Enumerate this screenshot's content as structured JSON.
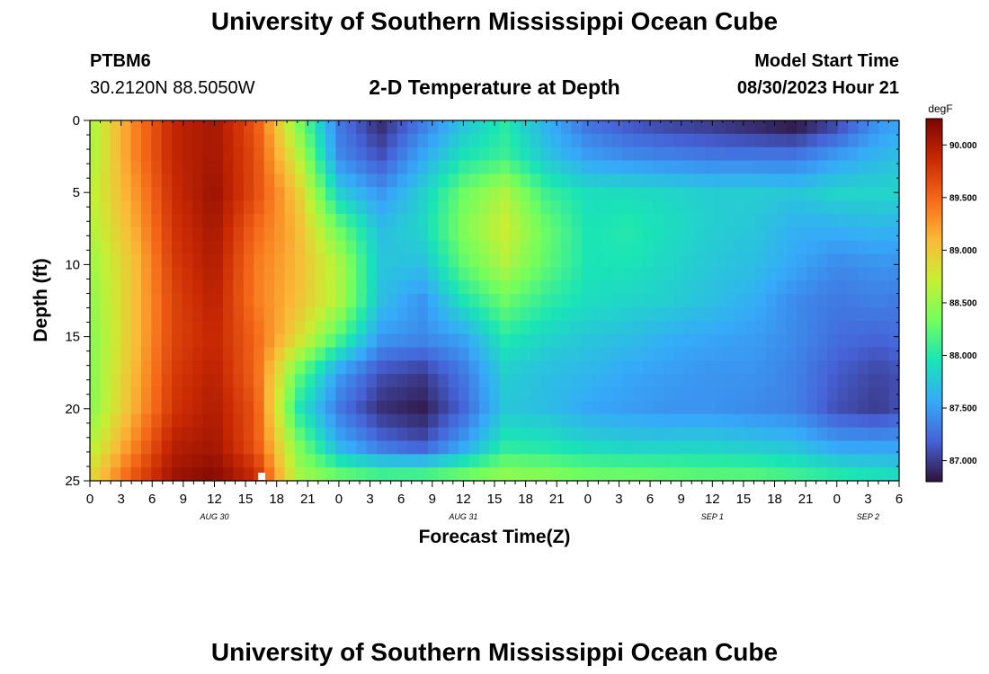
{
  "page": {
    "title": "University of Southern Mississippi Ocean Cube",
    "footer_title": "University of Southern Mississippi Ocean Cube",
    "station_id": "PTBM6",
    "station_coords": "30.2120N  88.5050W",
    "chart_heading": "2-D Temperature at Depth",
    "model_start_label": "Model Start Time",
    "model_start_value": "08/30/2023 Hour 21"
  },
  "chart_data": {
    "type": "heatmap",
    "title": "2-D Temperature at Depth",
    "xlabel": "Forecast Time(Z)",
    "ylabel": "Depth (ft)",
    "x_unit": "forecast hour from 2023-08-30 00Z",
    "xlim": [
      0,
      78
    ],
    "ylim": [
      0,
      25
    ],
    "x_ticks": [
      {
        "x": 0,
        "label": "0"
      },
      {
        "x": 3,
        "label": "3"
      },
      {
        "x": 6,
        "label": "6"
      },
      {
        "x": 9,
        "label": "9"
      },
      {
        "x": 12,
        "label": "12"
      },
      {
        "x": 15,
        "label": "15"
      },
      {
        "x": 18,
        "label": "18"
      },
      {
        "x": 21,
        "label": "21"
      },
      {
        "x": 24,
        "label": "0"
      },
      {
        "x": 27,
        "label": "3"
      },
      {
        "x": 30,
        "label": "6"
      },
      {
        "x": 33,
        "label": "9"
      },
      {
        "x": 36,
        "label": "12"
      },
      {
        "x": 39,
        "label": "15"
      },
      {
        "x": 42,
        "label": "18"
      },
      {
        "x": 45,
        "label": "21"
      },
      {
        "x": 48,
        "label": "0"
      },
      {
        "x": 51,
        "label": "3"
      },
      {
        "x": 54,
        "label": "6"
      },
      {
        "x": 57,
        "label": "9"
      },
      {
        "x": 60,
        "label": "12"
      },
      {
        "x": 63,
        "label": "15"
      },
      {
        "x": 66,
        "label": "18"
      },
      {
        "x": 69,
        "label": "21"
      },
      {
        "x": 72,
        "label": "0"
      },
      {
        "x": 75,
        "label": "3"
      },
      {
        "x": 78,
        "label": "6"
      }
    ],
    "date_labels": [
      {
        "x": 12,
        "label": "AUG 30"
      },
      {
        "x": 36,
        "label": "AUG 31"
      },
      {
        "x": 60,
        "label": "SEP 1"
      },
      {
        "x": 75,
        "label": "SEP 2"
      }
    ],
    "y_ticks": [
      0,
      5,
      10,
      15,
      20,
      25
    ],
    "colorbar": {
      "unit": "degF",
      "min": 86.8,
      "max": 90.25,
      "ticks": [
        "87.000",
        "87.500",
        "88.000",
        "88.500",
        "89.000",
        "89.500",
        "90.000"
      ],
      "colors": [
        "#30123b",
        "#4662d7",
        "#36aaf9",
        "#1ae4b6",
        "#72fe5e",
        "#c7ef34",
        "#fbb938",
        "#f56918",
        "#c92903",
        "#7a0403"
      ]
    },
    "grid": {
      "x": [
        0,
        4,
        8,
        12,
        16,
        20,
        24,
        28,
        32,
        36,
        40,
        44,
        48,
        52,
        56,
        60,
        64,
        68,
        72,
        76,
        78
      ],
      "depth": [
        0,
        2.5,
        5,
        7.5,
        10,
        12.5,
        15,
        17.5,
        20,
        22.5,
        25
      ],
      "values": [
        [
          88.55,
          89.3,
          89.9,
          90.05,
          89.6,
          88.4,
          87.3,
          86.9,
          87.3,
          87.7,
          88.0,
          87.6,
          87.25,
          87.1,
          87.0,
          86.95,
          86.85,
          86.75,
          87.0,
          87.45,
          87.5
        ],
        [
          88.55,
          89.3,
          89.9,
          90.05,
          89.65,
          88.7,
          87.4,
          87.1,
          87.55,
          87.95,
          88.1,
          87.75,
          87.5,
          87.4,
          87.35,
          87.3,
          87.3,
          87.3,
          87.5,
          87.65,
          87.7
        ],
        [
          88.65,
          89.2,
          89.85,
          90.1,
          89.65,
          89.0,
          87.8,
          87.45,
          87.8,
          88.3,
          88.6,
          88.1,
          87.9,
          87.9,
          87.85,
          87.8,
          87.8,
          87.75,
          87.85,
          87.85,
          87.85
        ],
        [
          88.6,
          89.1,
          89.8,
          90.05,
          89.5,
          89.1,
          88.3,
          87.7,
          87.85,
          88.4,
          88.75,
          88.3,
          87.95,
          88.0,
          87.9,
          87.8,
          87.75,
          87.6,
          87.6,
          87.65,
          87.6
        ],
        [
          88.5,
          89.0,
          89.75,
          90.0,
          89.4,
          89.1,
          88.6,
          87.75,
          87.7,
          88.25,
          88.6,
          88.25,
          87.95,
          87.95,
          87.85,
          87.75,
          87.7,
          87.55,
          87.4,
          87.45,
          87.45
        ],
        [
          88.45,
          89.0,
          89.7,
          89.95,
          89.4,
          89.05,
          88.6,
          87.7,
          87.45,
          87.95,
          88.3,
          88.05,
          87.9,
          87.85,
          87.8,
          87.7,
          87.6,
          87.4,
          87.3,
          87.35,
          87.3
        ],
        [
          88.4,
          89.0,
          89.7,
          89.9,
          89.5,
          88.9,
          88.2,
          87.5,
          87.4,
          87.55,
          88.0,
          87.85,
          87.75,
          87.7,
          87.6,
          87.55,
          87.5,
          87.4,
          87.25,
          87.2,
          87.25
        ],
        [
          88.4,
          89.05,
          89.75,
          89.95,
          89.5,
          88.3,
          87.5,
          87.1,
          87.0,
          87.3,
          87.8,
          87.7,
          87.65,
          87.55,
          87.5,
          87.45,
          87.45,
          87.35,
          87.15,
          87.05,
          87.1
        ],
        [
          88.4,
          89.1,
          89.8,
          90.0,
          89.6,
          88.0,
          87.3,
          86.95,
          86.85,
          87.2,
          87.75,
          87.7,
          87.55,
          87.5,
          87.45,
          87.45,
          87.4,
          87.35,
          87.1,
          87.0,
          87.1
        ],
        [
          88.6,
          89.3,
          89.95,
          90.05,
          89.6,
          88.4,
          87.6,
          87.25,
          87.1,
          87.5,
          88.0,
          87.95,
          87.85,
          87.8,
          87.8,
          87.8,
          87.75,
          87.7,
          87.5,
          87.5,
          87.5
        ],
        [
          88.9,
          89.6,
          90.1,
          90.2,
          89.9,
          88.6,
          88.4,
          88.3,
          88.35,
          88.45,
          88.55,
          88.5,
          88.4,
          88.4,
          88.35,
          88.3,
          88.3,
          88.2,
          88.1,
          88.0,
          87.95
        ]
      ]
    }
  }
}
